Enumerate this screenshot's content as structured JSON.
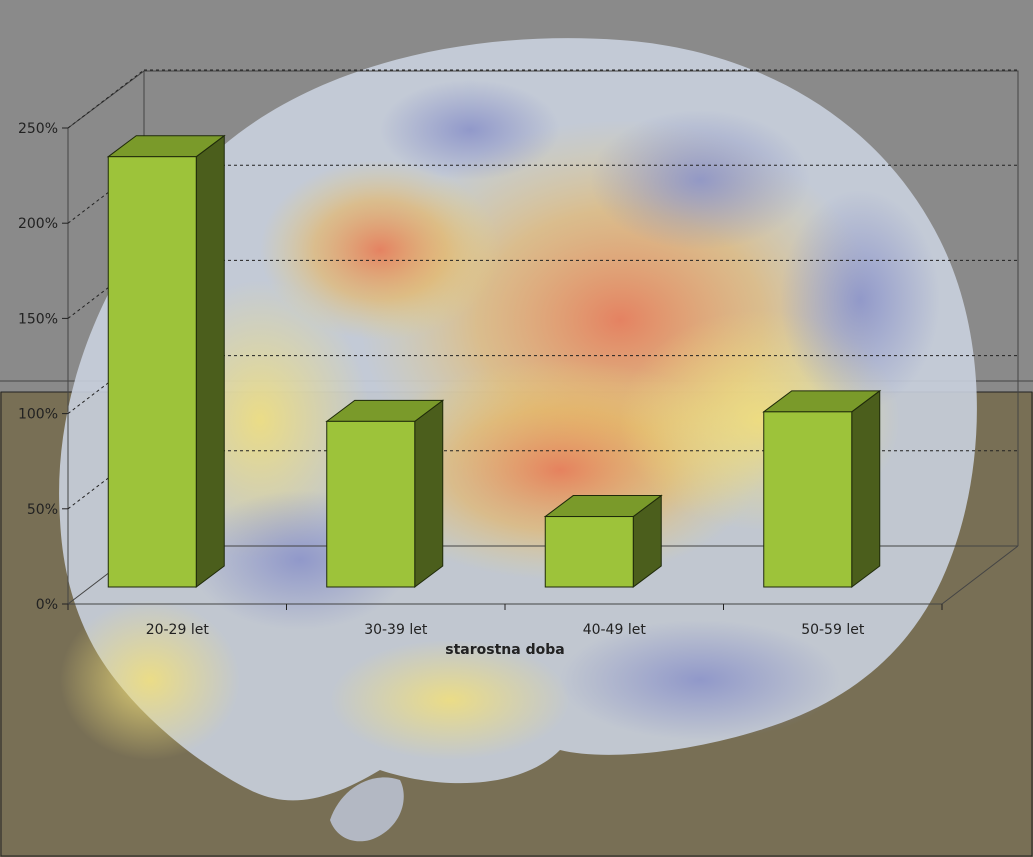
{
  "chart_data": {
    "type": "bar",
    "categories": [
      "20-29 let",
      "30-39 let",
      "40-49 let",
      "50-59 let"
    ],
    "values": [
      226,
      87,
      37,
      92
    ],
    "ylim": [
      0,
      250
    ],
    "yticks": [
      "0%",
      "50%",
      "100%",
      "150%",
      "200%",
      "250%"
    ],
    "ytick_values": [
      0,
      50,
      100,
      150,
      200,
      250
    ],
    "xlabel": "starostna doba",
    "ylabel": "",
    "title": "",
    "grid": true,
    "style": "3d",
    "colors": {
      "bar_front": "#9DC33A",
      "bar_top": "#7A9A2A",
      "bar_side": "#4B5E1C",
      "upper_background": "#8A8A8A",
      "lower_background": "#786F55"
    },
    "background_image": "brain-activity-map"
  }
}
